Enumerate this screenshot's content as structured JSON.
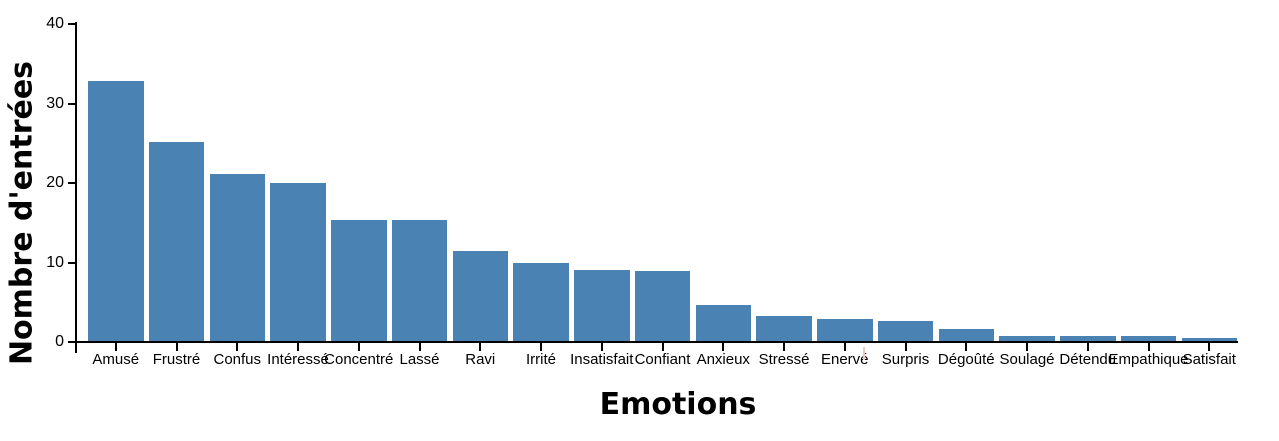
{
  "chart_data": {
    "type": "bar",
    "title": "",
    "xlabel": "Emotions",
    "ylabel": "Nombre d'entrées",
    "categories": [
      "Amusé",
      "Frustré",
      "Confus",
      "Intéressé",
      "Concentré",
      "Lassé",
      "Ravi",
      "Irrité",
      "Insatisfait",
      "Confiant",
      "Anxieux",
      "Stressé",
      "Enervé",
      "Surpris",
      "Dégoûté",
      "Soulagé",
      "Détendu",
      "Empathique",
      "Satisfait"
    ],
    "values": [
      32.8,
      25.1,
      21.1,
      20,
      15.4,
      15.4,
      11.5,
      10,
      9,
      8.9,
      4.6,
      3.3,
      2.9,
      2.6,
      1.6,
      0.7,
      0.7,
      0.7,
      0.5
    ],
    "ylim": [
      0,
      40
    ],
    "yticks": [
      0,
      10,
      20,
      30,
      40
    ],
    "grid": false,
    "legend": "none",
    "bar_color": "#4A82B4",
    "axis_color": "#000000",
    "background_color": "#FFFFFF",
    "stray_mark_color": "#EDC6C6"
  }
}
